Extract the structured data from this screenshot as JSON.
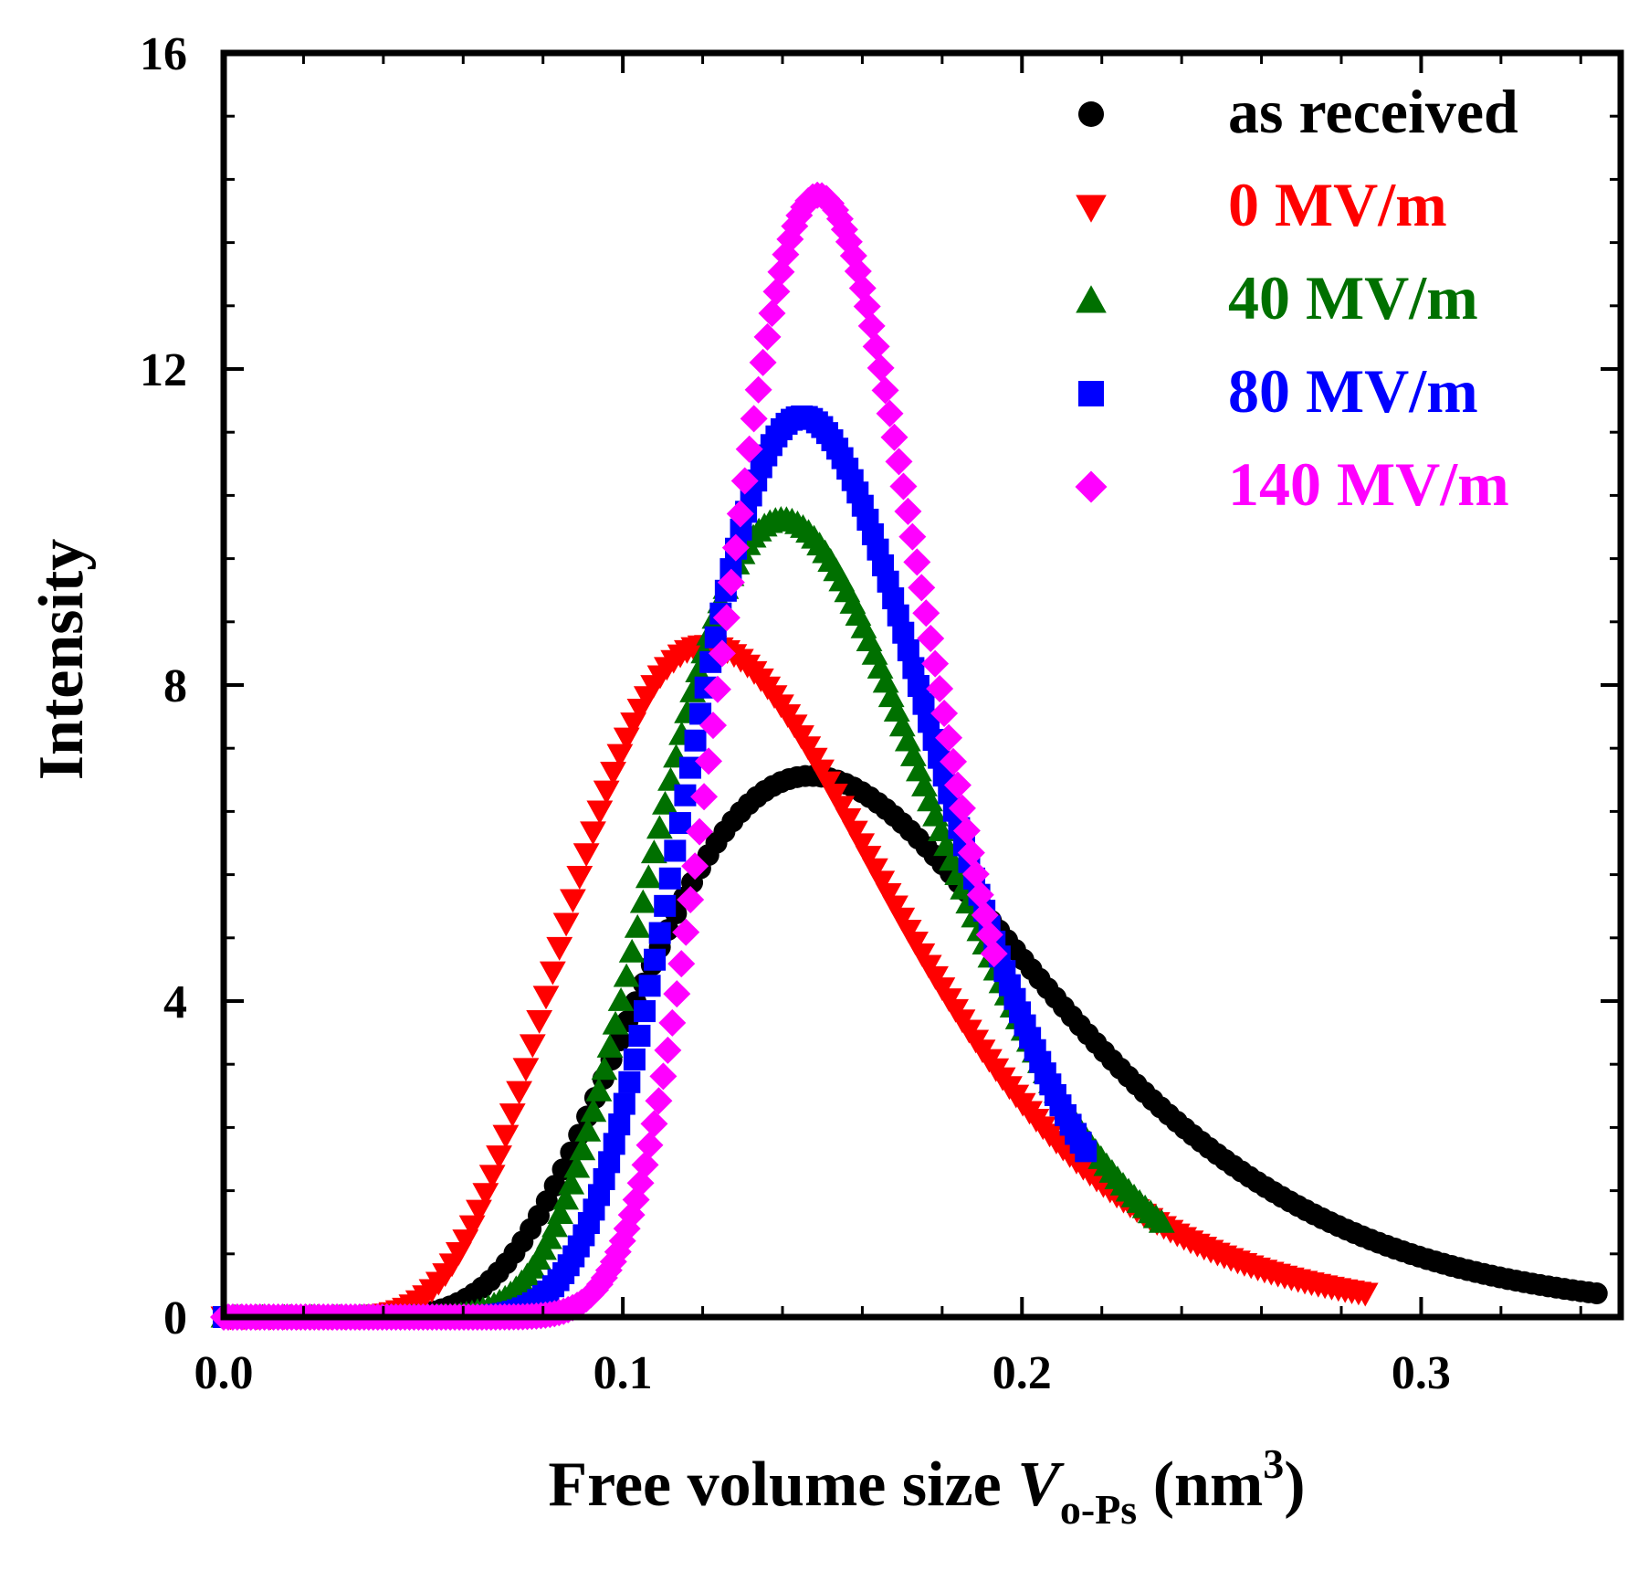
{
  "chart_data": {
    "type": "scatter",
    "title": "",
    "xlabel": {
      "main": "Free volume size ",
      "var": "V",
      "sub": "o-Ps",
      "unit_open": " (nm",
      "unit_sup": "3",
      "unit_close": ")"
    },
    "ylabel": "Intensity",
    "xlim": [
      0.0,
      0.35
    ],
    "ylim": [
      0,
      16
    ],
    "xticks": [
      {
        "value": 0.0,
        "label": "0.0"
      },
      {
        "value": 0.1,
        "label": "0.1"
      },
      {
        "value": 0.2,
        "label": "0.2"
      },
      {
        "value": 0.3,
        "label": "0.3"
      }
    ],
    "yticks": [
      {
        "value": 0,
        "label": "0"
      },
      {
        "value": 4,
        "label": "4"
      },
      {
        "value": 8,
        "label": "8"
      },
      {
        "value": 12,
        "label": "12"
      },
      {
        "value": 16,
        "label": "16"
      }
    ],
    "x_minor_step": 0.02,
    "y_minor_step": 0.8,
    "legend_position": "top-right",
    "series": [
      {
        "name": "as received",
        "color": "#000000",
        "marker": "circle",
        "peak_x": 0.147,
        "peak_y": 6.85,
        "x_end": 0.344,
        "end_y": 0.3
      },
      {
        "name": "0 MV/m",
        "color": "#ff0000",
        "marker": "triangle-down",
        "peak_x": 0.121,
        "peak_y": 8.5,
        "x_end": 0.286,
        "end_y": 0.3
      },
      {
        "name": "40 MV/m",
        "color": "#007000",
        "marker": "triangle-up",
        "peak_x": 0.14,
        "peak_y": 10.1,
        "x_end": 0.235,
        "end_y": 1.2
      },
      {
        "name": "80 MV/m",
        "color": "#0000ff",
        "marker": "square",
        "peak_x": 0.145,
        "peak_y": 11.4,
        "x_end": 0.216,
        "end_y": 2.1
      },
      {
        "name": "140 MV/m",
        "color": "#ff00ff",
        "marker": "diamond",
        "peak_x": 0.149,
        "peak_y": 14.2,
        "x_end": 0.193,
        "end_y": 4.6
      }
    ]
  }
}
